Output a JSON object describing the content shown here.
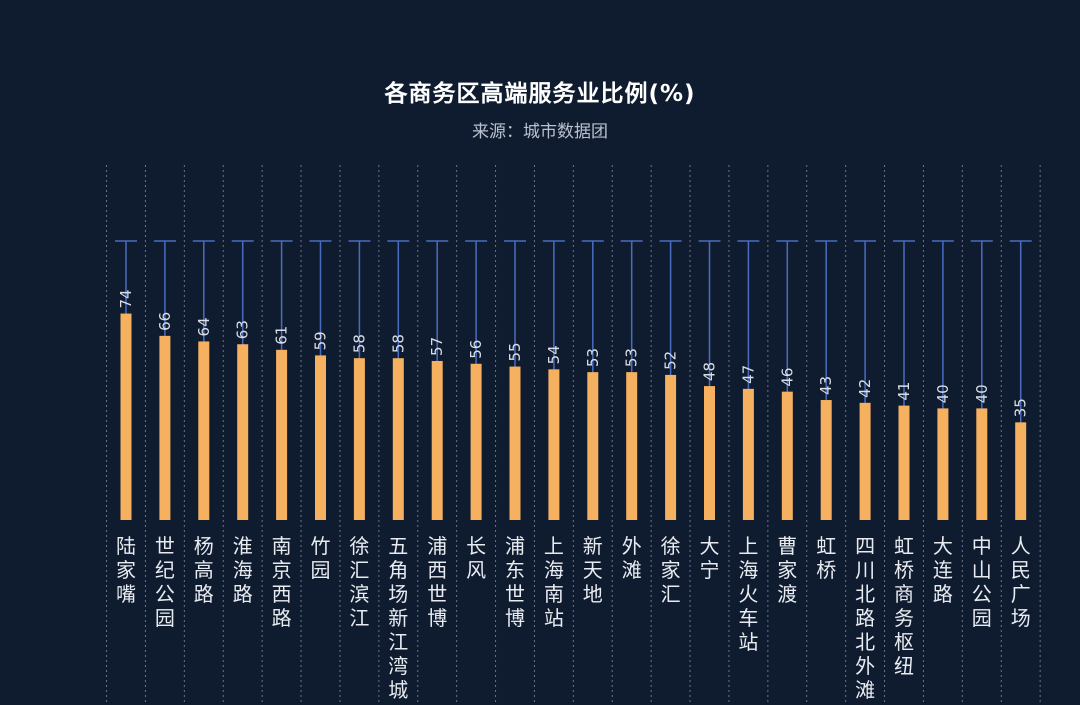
{
  "chart_data": {
    "type": "bar",
    "title": "各商务区高端服务业比例(%)",
    "subtitle": "来源：城市数据团",
    "categories": [
      "陆家嘴",
      "世纪公园",
      "杨高路",
      "淮海路",
      "南京西路",
      "竹园",
      "徐汇滨江",
      "五角场新江湾城",
      "浦西世博",
      "长风",
      "浦东世博",
      "上海南站",
      "新天地",
      "外滩",
      "徐家汇",
      "大宁",
      "上海火车站",
      "曹家渡",
      "虹桥",
      "四川北路北外滩",
      "虹桥商务枢纽",
      "大连路",
      "中山公园",
      "人民广场"
    ],
    "values": [
      74,
      66,
      64,
      63,
      61,
      59,
      58,
      58,
      57,
      56,
      55,
      54,
      53,
      53,
      52,
      48,
      47,
      46,
      43,
      42,
      41,
      40,
      40,
      35
    ],
    "ylim": [
      0,
      100
    ],
    "xlabel": "",
    "ylabel": "",
    "grid": true,
    "colors": {
      "bar": "#f5b060",
      "track": "#4a6cc0",
      "grid": "#7f8a9c",
      "value_label": "#d9dee6"
    }
  }
}
